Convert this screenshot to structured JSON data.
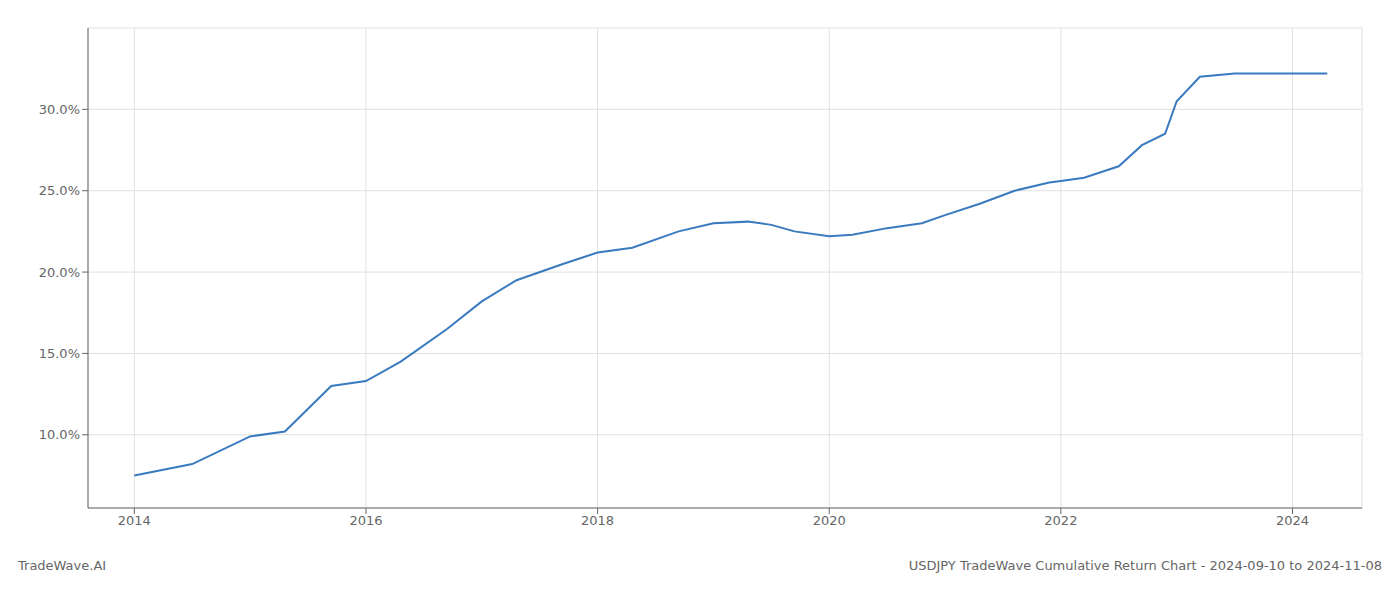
{
  "chart_data": {
    "type": "line",
    "annotations": [
      "TradeWave.AI",
      "USDJPY TradeWave Cumulative Return Chart - 2024-09-10 to 2024-11-08"
    ],
    "x": [
      2014.0,
      2014.5,
      2015.0,
      2015.3,
      2015.7,
      2016.0,
      2016.3,
      2016.7,
      2017.0,
      2017.3,
      2017.7,
      2018.0,
      2018.3,
      2018.7,
      2019.0,
      2019.3,
      2019.5,
      2019.7,
      2020.0,
      2020.2,
      2020.5,
      2020.8,
      2021.0,
      2021.3,
      2021.6,
      2021.9,
      2022.0,
      2022.2,
      2022.5,
      2022.7,
      2022.9,
      2023.0,
      2023.2,
      2023.5,
      2023.7,
      2023.9,
      2024.0,
      2024.3
    ],
    "values": [
      7.5,
      8.2,
      9.9,
      10.2,
      13.0,
      13.3,
      14.5,
      16.5,
      18.2,
      19.5,
      20.5,
      21.2,
      21.5,
      22.5,
      23.0,
      23.1,
      22.9,
      22.5,
      22.2,
      22.3,
      22.7,
      23.0,
      23.5,
      24.2,
      25.0,
      25.5,
      25.6,
      25.8,
      26.5,
      27.8,
      28.5,
      30.5,
      32.0,
      32.2,
      32.2,
      32.2,
      32.2,
      32.2
    ],
    "color": "#3a7abf",
    "xlim": [
      2013.6,
      2024.6
    ],
    "ylim": [
      5.5,
      35.0
    ],
    "xticks": [
      2014,
      2016,
      2018,
      2020,
      2022,
      2024
    ],
    "yticks": [
      {
        "value": 10.0,
        "label": "10.0%"
      },
      {
        "value": 15.0,
        "label": "15.0%"
      },
      {
        "value": 20.0,
        "label": "20.0%"
      },
      {
        "value": 25.0,
        "label": "25.0%"
      },
      {
        "value": 30.0,
        "label": "30.0%"
      }
    ],
    "grid": true
  }
}
